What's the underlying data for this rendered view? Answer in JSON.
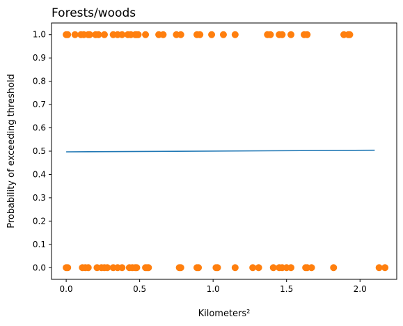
{
  "chart_data": {
    "type": "scatter",
    "title": "Forests/woods",
    "xlabel": "Kilometers²",
    "ylabel": "Probability of exceeding threshold",
    "xlim": [
      -0.1,
      2.25
    ],
    "ylim": [
      -0.05,
      1.05
    ],
    "xticks": [
      0.0,
      0.5,
      1.0,
      1.5,
      2.0
    ],
    "xtick_labels": [
      "0.0",
      "0.5",
      "1.0",
      "1.5",
      "2.0"
    ],
    "yticks": [
      0.0,
      0.1,
      0.2,
      0.3,
      0.4,
      0.5,
      0.6,
      0.7,
      0.8,
      0.9,
      1.0
    ],
    "ytick_labels": [
      "0.0",
      "0.1",
      "0.2",
      "0.3",
      "0.4",
      "0.5",
      "0.6",
      "0.7",
      "0.8",
      "0.9",
      "1.0"
    ],
    "grid": false,
    "series": [
      {
        "type": "scatter",
        "color": "#ff7f0e",
        "points": [
          [
            0.0,
            1
          ],
          [
            0.01,
            1
          ],
          [
            0.06,
            1
          ],
          [
            0.1,
            1
          ],
          [
            0.12,
            1
          ],
          [
            0.15,
            1
          ],
          [
            0.16,
            1
          ],
          [
            0.2,
            1
          ],
          [
            0.22,
            1
          ],
          [
            0.26,
            1
          ],
          [
            0.32,
            1
          ],
          [
            0.35,
            1
          ],
          [
            0.38,
            1
          ],
          [
            0.42,
            1
          ],
          [
            0.44,
            1
          ],
          [
            0.47,
            1
          ],
          [
            0.48,
            1
          ],
          [
            0.49,
            1
          ],
          [
            0.54,
            1
          ],
          [
            0.63,
            1
          ],
          [
            0.66,
            1
          ],
          [
            0.75,
            1
          ],
          [
            0.78,
            1
          ],
          [
            0.89,
            1
          ],
          [
            0.91,
            1
          ],
          [
            0.99,
            1
          ],
          [
            1.07,
            1
          ],
          [
            1.15,
            1
          ],
          [
            1.37,
            1
          ],
          [
            1.39,
            1
          ],
          [
            1.45,
            1
          ],
          [
            1.47,
            1
          ],
          [
            1.53,
            1
          ],
          [
            1.62,
            1
          ],
          [
            1.64,
            1
          ],
          [
            1.89,
            1
          ],
          [
            1.92,
            1
          ],
          [
            1.93,
            1
          ],
          [
            0.0,
            0
          ],
          [
            0.01,
            0
          ],
          [
            0.11,
            0
          ],
          [
            0.13,
            0
          ],
          [
            0.15,
            0
          ],
          [
            0.21,
            0
          ],
          [
            0.24,
            0
          ],
          [
            0.26,
            0
          ],
          [
            0.28,
            0
          ],
          [
            0.32,
            0
          ],
          [
            0.35,
            0
          ],
          [
            0.38,
            0
          ],
          [
            0.43,
            0
          ],
          [
            0.45,
            0
          ],
          [
            0.47,
            0
          ],
          [
            0.48,
            0
          ],
          [
            0.54,
            0
          ],
          [
            0.55,
            0
          ],
          [
            0.56,
            0
          ],
          [
            0.77,
            0
          ],
          [
            0.78,
            0
          ],
          [
            0.89,
            0
          ],
          [
            0.9,
            0
          ],
          [
            1.02,
            0
          ],
          [
            1.03,
            0
          ],
          [
            1.15,
            0
          ],
          [
            1.27,
            0
          ],
          [
            1.31,
            0
          ],
          [
            1.41,
            0
          ],
          [
            1.45,
            0
          ],
          [
            1.47,
            0
          ],
          [
            1.5,
            0
          ],
          [
            1.53,
            0
          ],
          [
            1.63,
            0
          ],
          [
            1.64,
            0
          ],
          [
            1.67,
            0
          ],
          [
            1.82,
            0
          ],
          [
            2.13,
            0
          ],
          [
            2.17,
            0
          ]
        ]
      },
      {
        "type": "line",
        "color": "#1f77b4",
        "x": [
          0.0,
          2.1
        ],
        "y": [
          0.497,
          0.504
        ]
      }
    ]
  }
}
